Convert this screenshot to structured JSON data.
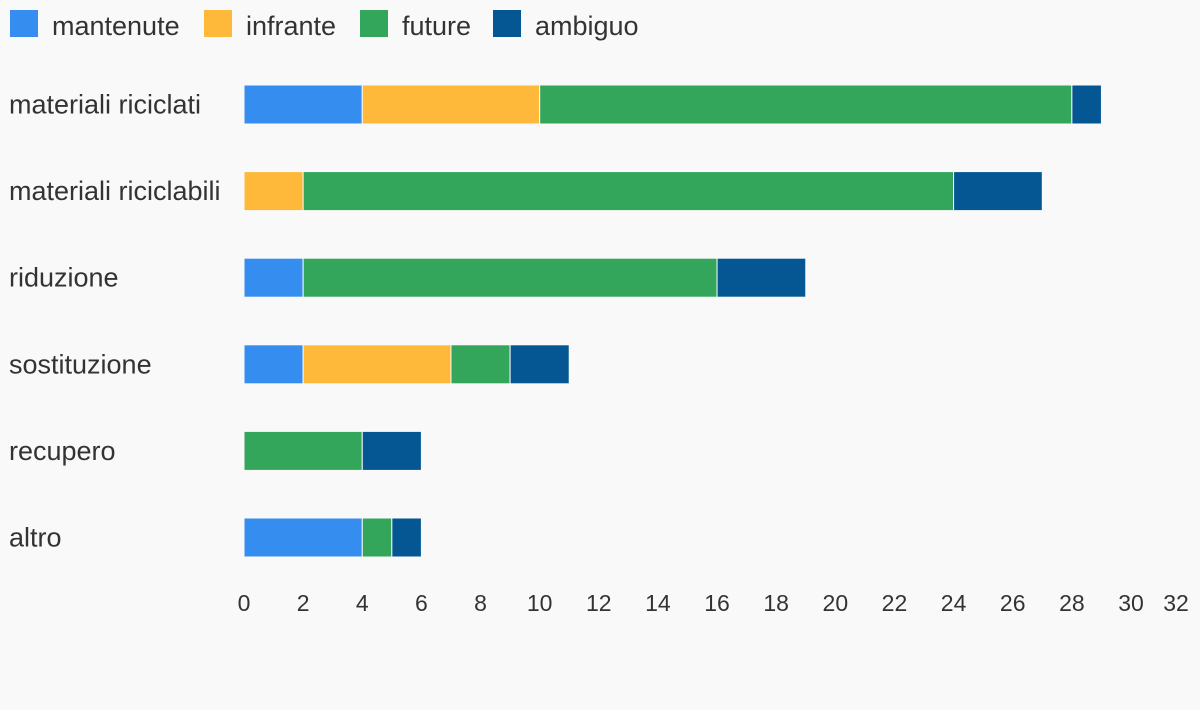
{
  "chart_data": {
    "type": "bar",
    "orientation": "horizontal",
    "stacked": true,
    "categories": [
      "materiali riciclati",
      "materiali riciclabili",
      "riduzione",
      "sostituzione",
      "recupero",
      "altro"
    ],
    "series": [
      {
        "name": "mantenute",
        "color": "#368DF0",
        "values": [
          4,
          0,
          2,
          2,
          0,
          4
        ]
      },
      {
        "name": "infrante",
        "color": "#FFB93A",
        "values": [
          6,
          2,
          0,
          5,
          0,
          0
        ]
      },
      {
        "name": "future",
        "color": "#33A65C",
        "values": [
          18,
          22,
          14,
          2,
          4,
          1
        ]
      },
      {
        "name": "ambiguo",
        "color": "#045793",
        "values": [
          1,
          3,
          3,
          2,
          2,
          1
        ]
      }
    ],
    "xlim": [
      0,
      32
    ],
    "xticks": [
      "0",
      "2",
      "4",
      "6",
      "8",
      "10",
      "12",
      "14",
      "16",
      "18",
      "20",
      "22",
      "24",
      "26",
      "28",
      "30",
      "32"
    ],
    "grid": false,
    "legend_position": "top-left",
    "title": "",
    "xlabel": "",
    "ylabel": ""
  }
}
